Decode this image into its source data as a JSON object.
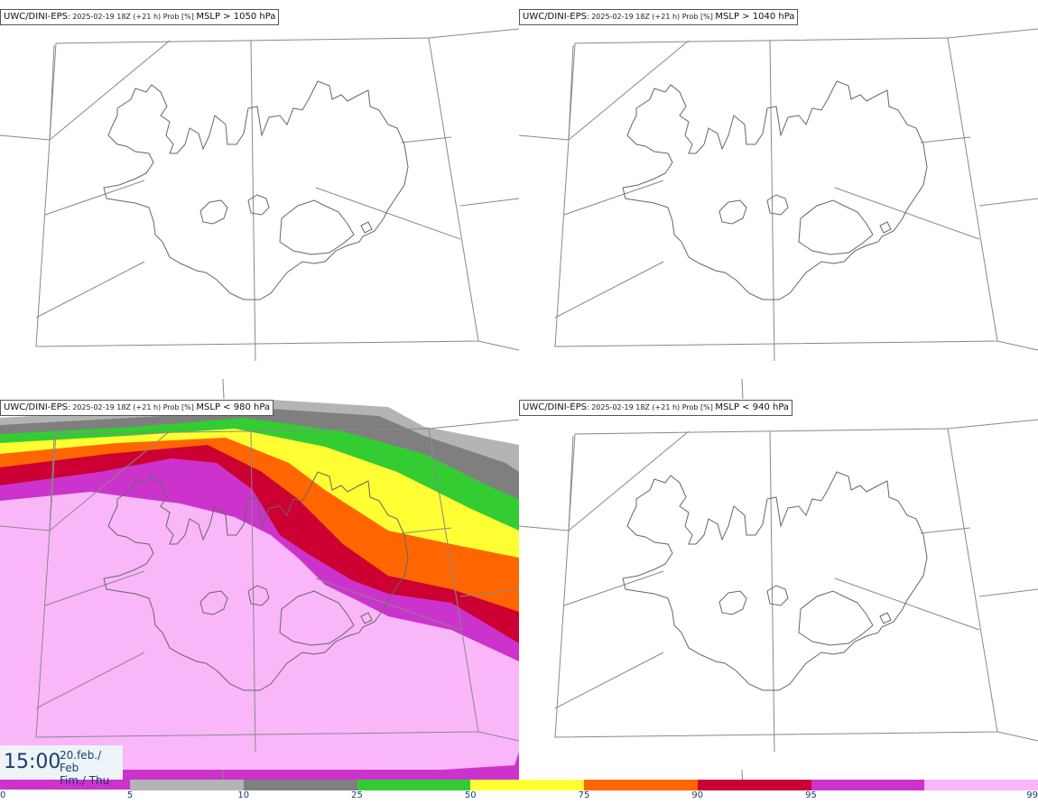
{
  "panels": [
    {
      "model": "UWC/DINI-EPS",
      "run_info": ": 2025-02-19 18Z (+21 h) Prob [%] ",
      "threshold": "MSLP > 1050 hPa"
    },
    {
      "model": "UWC/DINI-EPS",
      "run_info": ": 2025-02-19 18Z (+21 h) Prob [%] ",
      "threshold": "MSLP > 1040 hPa"
    },
    {
      "model": "UWC/DINI-EPS",
      "run_info": ": 2025-02-19 18Z (+21 h) Prob [%] ",
      "threshold": "MSLP < 980 hPa"
    },
    {
      "model": "UWC/DINI-EPS",
      "run_info": ": 2025-02-19 18Z (+21 h) Prob [%] ",
      "threshold": "MSLP < 940 hPa"
    }
  ],
  "valid_time": {
    "time": "15:00",
    "date_line1": "20.feb./ Feb",
    "date_line2": "Fim./ Thu"
  },
  "legend": {
    "ticks": [
      "0",
      "5",
      "10",
      "25",
      "50",
      "75",
      "90",
      "95",
      "99"
    ],
    "colors": [
      "#b4b4b4",
      "#7f7f7f",
      "#33cc33",
      "#ffff33",
      "#ff6600",
      "#cc0033",
      "#cc33cc",
      "#f9b6f9"
    ]
  },
  "probability_field_colors": {
    "p5": "#b4b4b4",
    "p10": "#7f7f7f",
    "p25": "#33cc33",
    "p50": "#ffff33",
    "p75": "#ff6600",
    "p90": "#cc0033",
    "p95": "#cc33cc",
    "p99": "#f9b6f9"
  }
}
